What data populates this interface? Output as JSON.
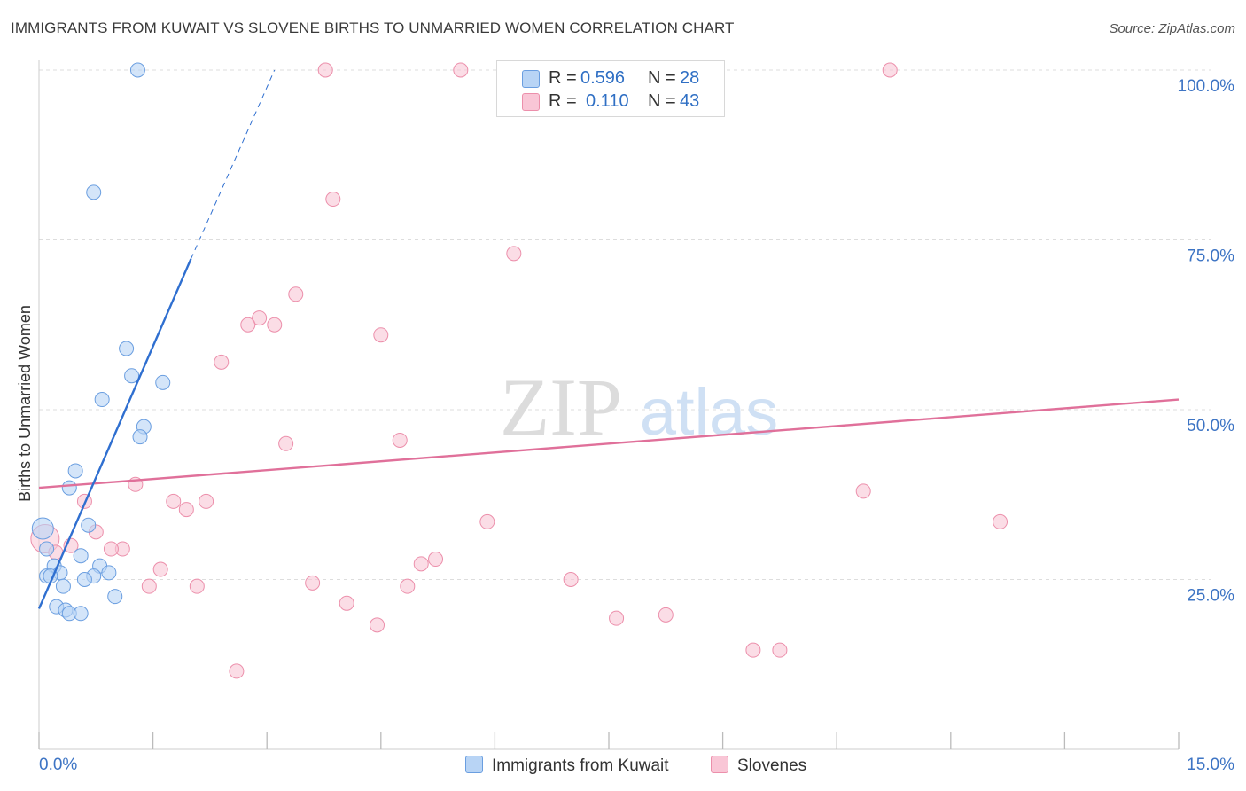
{
  "header": {
    "title": "IMMIGRANTS FROM KUWAIT VS SLOVENE BIRTHS TO UNMARRIED WOMEN CORRELATION CHART",
    "source": "Source: ZipAtlas.com"
  },
  "watermark": {
    "part1": "ZIP",
    "part2": "atlas"
  },
  "legend": {
    "rows": [
      {
        "r_label": "R =",
        "r_value": "0.596",
        "n_label": "N =",
        "n_value": "28"
      },
      {
        "r_label": "R =",
        "r_value": "0.110",
        "n_label": "N =",
        "n_value": "43"
      }
    ]
  },
  "colors": {
    "blue_fill": "#b8d4f5",
    "blue_stroke": "#6a9ee0",
    "blue_line": "#2f6fd0",
    "pink_fill": "#f9c6d6",
    "pink_stroke": "#ec8fab",
    "pink_line": "#e0709a",
    "tick_label": "#3d74c4",
    "grid": "#dddddd"
  },
  "chart_data": {
    "type": "scatter",
    "title": "IMMIGRANTS FROM KUWAIT VS SLOVENE BIRTHS TO UNMARRIED WOMEN CORRELATION CHART",
    "xlabel": "",
    "ylabel": "Births to Unmarried Women",
    "xlim": [
      0,
      15
    ],
    "ylim": [
      0,
      100
    ],
    "x_tick_labels": [
      "0.0%",
      "15.0%"
    ],
    "y_tick_labels": [
      "25.0%",
      "50.0%",
      "75.0%",
      "100.0%"
    ],
    "y_ticks": [
      25,
      50,
      75,
      100
    ],
    "grid": true,
    "legend_position": "bottom",
    "series": [
      {
        "name": "Immigrants from Kuwait",
        "color": "blue",
        "points": [
          [
            1.3,
            100
          ],
          [
            0.72,
            82
          ],
          [
            1.15,
            59
          ],
          [
            1.22,
            55
          ],
          [
            1.63,
            54
          ],
          [
            0.83,
            51.5
          ],
          [
            1.38,
            47.5
          ],
          [
            1.33,
            46
          ],
          [
            0.48,
            41
          ],
          [
            0.4,
            38.5
          ],
          [
            0.65,
            33
          ],
          [
            0.05,
            32.5
          ],
          [
            0.1,
            29.5
          ],
          [
            0.55,
            28.5
          ],
          [
            0.2,
            27
          ],
          [
            0.8,
            27
          ],
          [
            0.28,
            26
          ],
          [
            0.92,
            26
          ],
          [
            0.1,
            25.5
          ],
          [
            0.15,
            25.5
          ],
          [
            0.72,
            25.5
          ],
          [
            0.6,
            25
          ],
          [
            0.32,
            24
          ],
          [
            1.0,
            22.5
          ],
          [
            0.23,
            21
          ],
          [
            0.35,
            20.5
          ],
          [
            0.4,
            20
          ],
          [
            0.55,
            20
          ]
        ],
        "trend": {
          "x": [
            0.0,
            2.0
          ],
          "y": [
            20.7,
            72.2
          ],
          "dashed_to": [
            3.1,
            100
          ]
        }
      },
      {
        "name": "Slovenes",
        "color": "pink",
        "points": [
          [
            3.77,
            100
          ],
          [
            5.55,
            100
          ],
          [
            6.2,
            100
          ],
          [
            11.2,
            100
          ],
          [
            3.87,
            81
          ],
          [
            6.25,
            73
          ],
          [
            3.38,
            67
          ],
          [
            2.9,
            63.5
          ],
          [
            2.75,
            62.5
          ],
          [
            3.1,
            62.5
          ],
          [
            4.5,
            61
          ],
          [
            2.4,
            57
          ],
          [
            3.25,
            45
          ],
          [
            4.75,
            45.5
          ],
          [
            1.27,
            39
          ],
          [
            10.85,
            38
          ],
          [
            0.6,
            36.5
          ],
          [
            1.77,
            36.5
          ],
          [
            2.2,
            36.5
          ],
          [
            1.94,
            35.3
          ],
          [
            5.9,
            33.5
          ],
          [
            12.65,
            33.5
          ],
          [
            0.08,
            31
          ],
          [
            0.75,
            32
          ],
          [
            0.42,
            30
          ],
          [
            1.1,
            29.5
          ],
          [
            0.95,
            29.5
          ],
          [
            0.22,
            29
          ],
          [
            5.22,
            28
          ],
          [
            5.03,
            27.3
          ],
          [
            1.6,
            26.5
          ],
          [
            7.0,
            25
          ],
          [
            3.6,
            24.5
          ],
          [
            4.85,
            24
          ],
          [
            1.45,
            24
          ],
          [
            2.08,
            24
          ],
          [
            4.05,
            21.5
          ],
          [
            7.6,
            19.3
          ],
          [
            8.25,
            19.8
          ],
          [
            4.45,
            18.3
          ],
          [
            9.4,
            14.6
          ],
          [
            9.75,
            14.6
          ],
          [
            2.6,
            11.5
          ]
        ],
        "trend": {
          "x": [
            0.0,
            15.0
          ],
          "y": [
            38.5,
            51.5
          ]
        }
      }
    ]
  }
}
